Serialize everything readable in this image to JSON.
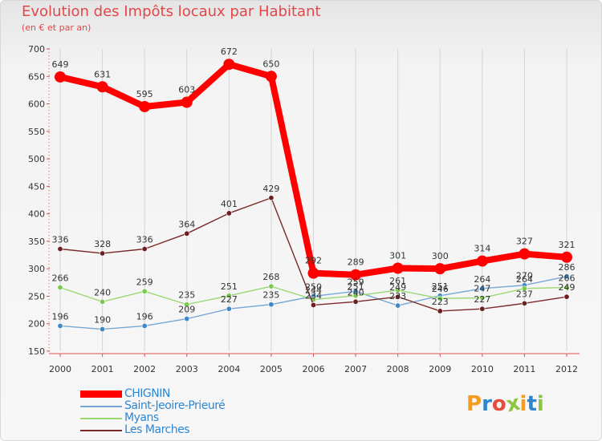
{
  "title": "Evolution des Impôts locaux par Habitant",
  "subtitle": "(en € et par an)",
  "chart_data": {
    "type": "line",
    "title": "Evolution des Impôts locaux par Habitant",
    "subtitle": "(en € et par an)",
    "xlabel": "",
    "ylabel": "",
    "x": [
      "2000",
      "2001",
      "2002",
      "2003",
      "2004",
      "2005",
      "2006",
      "2007",
      "2008",
      "2009",
      "2010",
      "2011",
      "2012"
    ],
    "yticks": [
      150,
      200,
      250,
      300,
      350,
      400,
      450,
      500,
      550,
      600,
      650,
      700
    ],
    "ylim": [
      150,
      700
    ],
    "grid": "vertical",
    "legend_position": "bottom-left",
    "series": [
      {
        "name": "CHIGNIN",
        "color": "#ff0000",
        "values": [
          649,
          631,
          595,
          603,
          672,
          650,
          292,
          289,
          301,
          300,
          314,
          327,
          321
        ]
      },
      {
        "name": "Saint-Jeoire-Prieuré",
        "color": "#76a7d6",
        "values": [
          196,
          190,
          196,
          209,
          227,
          235,
          250,
          259,
          233,
          251,
          264,
          270,
          286
        ]
      },
      {
        "name": "Myans",
        "color": "#99d872",
        "values": [
          266,
          240,
          259,
          235,
          251,
          268,
          244,
          251,
          261,
          246,
          247,
          264,
          266
        ]
      },
      {
        "name": "Les Marches",
        "color": "#7a2a2a",
        "values": [
          336,
          328,
          336,
          364,
          401,
          429,
          234,
          240,
          249,
          223,
          227,
          237,
          249
        ]
      }
    ]
  },
  "legend": {
    "items": [
      {
        "label": "CHIGNIN",
        "color": "#ff0000"
      },
      {
        "label": "Saint-Jeoire-Prieuré",
        "color": "#76a7d6"
      },
      {
        "label": "Myans",
        "color": "#99d872"
      },
      {
        "label": "Les Marches",
        "color": "#7a2a2a"
      }
    ]
  },
  "logo": {
    "letters": [
      "P",
      "r",
      "o",
      "x",
      "i",
      "t",
      "i"
    ],
    "colors": [
      "#f39c1f",
      "#2f86d0",
      "#e84c3d",
      "#8cc63f",
      "#f39c1f",
      "#2f86d0",
      "#8cc63f"
    ]
  }
}
